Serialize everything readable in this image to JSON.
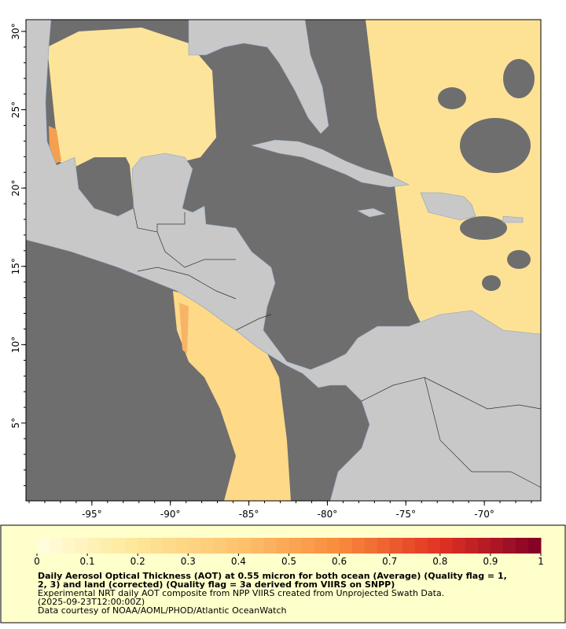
{
  "map": {
    "xlim": [
      -99.2,
      -66.4
    ],
    "ylim": [
      0.03,
      30.75
    ],
    "xticks": [
      {
        "value": -95,
        "label": "-95°"
      },
      {
        "value": -90,
        "label": "-90°"
      },
      {
        "value": -85,
        "label": "-85°"
      },
      {
        "value": -80,
        "label": "-80°"
      },
      {
        "value": -75,
        "label": "-75°"
      },
      {
        "value": -70,
        "label": "-70°"
      }
    ],
    "yticks": [
      {
        "value": 5,
        "label": "5°"
      },
      {
        "value": 10,
        "label": "10°"
      },
      {
        "value": 15,
        "label": "15°"
      },
      {
        "value": 20,
        "label": "20°"
      },
      {
        "value": 25,
        "label": "25°"
      },
      {
        "value": 30,
        "label": "30°"
      }
    ]
  },
  "colorbar": {
    "lim": [
      0,
      1
    ],
    "ticks": [
      0,
      0.1,
      0.2,
      0.3,
      0.4,
      0.5,
      0.6,
      0.7,
      0.8,
      0.9,
      1
    ]
  },
  "caption": {
    "title_lines": [
      "Daily Aerosol Optical Thickness (AOT) at 0.55 micron for both ocean (Average) (Quality flag = 1,",
      "2, 3) and land (corrected) (Quality flag = 3a derived from VIIRS on SNPP)"
    ],
    "lines": [
      "Experimental NRT daily AOT composite from NPP VIIRS created from Unprojected Swath Data.",
      "(2025-09-23T12:00:00Z)",
      "Data courtesy of NOAA/AOML/PHOD/Atlantic OceanWatch"
    ]
  }
}
